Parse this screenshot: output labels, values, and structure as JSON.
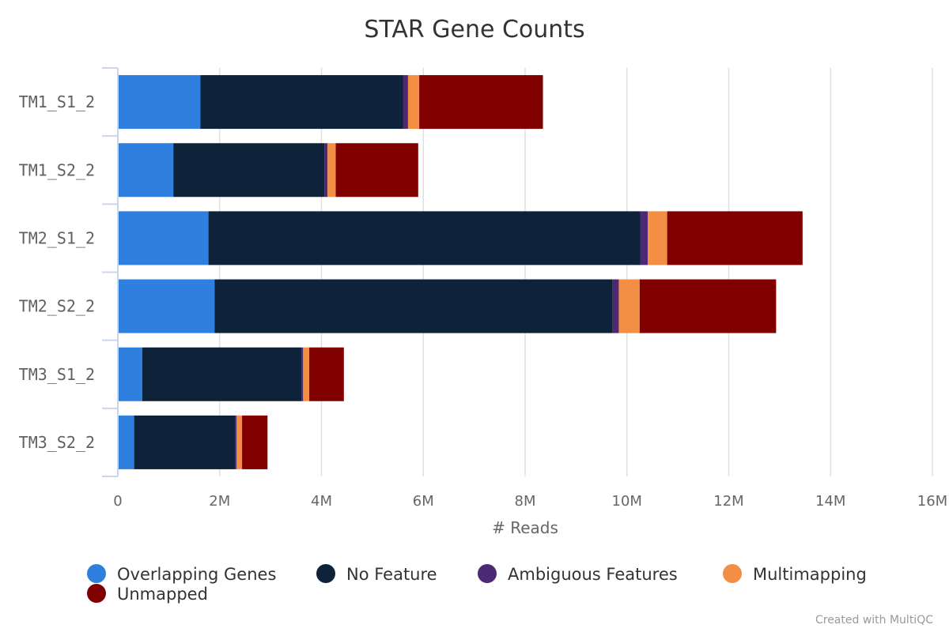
{
  "chart_data": {
    "type": "bar",
    "orientation": "horizontal",
    "stacked": true,
    "title": "STAR Gene Counts",
    "xlabel": "# Reads",
    "ylabel": "",
    "xlim": [
      0,
      16000000
    ],
    "x_ticks": [
      0,
      2000000,
      4000000,
      6000000,
      8000000,
      10000000,
      12000000,
      14000000,
      16000000
    ],
    "x_tick_labels": [
      "0",
      "2M",
      "4M",
      "6M",
      "8M",
      "10M",
      "12M",
      "14M",
      "16M"
    ],
    "grid": true,
    "legend_position": "bottom",
    "categories": [
      "TM1_S1_2",
      "TM1_S2_2",
      "TM2_S1_2",
      "TM2_S2_2",
      "TM3_S1_2",
      "TM3_S2_2"
    ],
    "series": [
      {
        "name": "Overlapping Genes",
        "color": "#2e7fde",
        "values": [
          1620000,
          1090000,
          1780000,
          1900000,
          480000,
          320000
        ]
      },
      {
        "name": "No Feature",
        "color": "#0e2239",
        "values": [
          3980000,
          2970000,
          8480000,
          7820000,
          3130000,
          1990000
        ]
      },
      {
        "name": "Ambiguous Features",
        "color": "#4b2a73",
        "values": [
          100000,
          60000,
          150000,
          120000,
          30000,
          20000
        ]
      },
      {
        "name": "Multimapping",
        "color": "#f28f45",
        "values": [
          220000,
          160000,
          380000,
          410000,
          120000,
          110000
        ]
      },
      {
        "name": "Unmapped",
        "color": "#800000",
        "values": [
          2430000,
          1620000,
          2660000,
          2680000,
          680000,
          500000
        ]
      }
    ],
    "credit": "Created with MultiQC"
  }
}
